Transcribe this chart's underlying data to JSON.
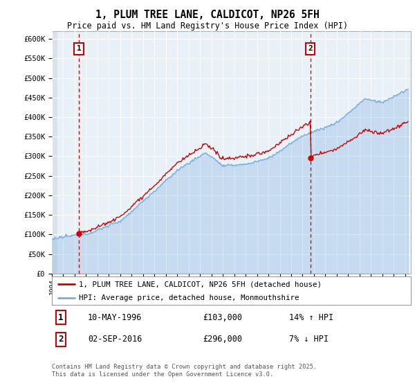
{
  "title": "1, PLUM TREE LANE, CALDICOT, NP26 5FH",
  "subtitle": "Price paid vs. HM Land Registry's House Price Index (HPI)",
  "ylim": [
    0,
    620000
  ],
  "yticks": [
    0,
    50000,
    100000,
    150000,
    200000,
    250000,
    300000,
    350000,
    400000,
    450000,
    500000,
    550000,
    600000
  ],
  "ytick_labels": [
    "£0",
    "£50K",
    "£100K",
    "£150K",
    "£200K",
    "£250K",
    "£300K",
    "£350K",
    "£400K",
    "£450K",
    "£500K",
    "£550K",
    "£600K"
  ],
  "xlim_start": 1994.0,
  "xlim_end": 2025.5,
  "purchase1_date": 1996.36,
  "purchase1_price": 103000,
  "purchase2_date": 2016.67,
  "purchase2_price": 296000,
  "property_color": "#cc0000",
  "hpi_color": "#7aaddb",
  "hpi_fill_color": "#ddeeff",
  "property_label": "1, PLUM TREE LANE, CALDICOT, NP26 5FH (detached house)",
  "hpi_label": "HPI: Average price, detached house, Monmouthshire",
  "annotation1_date": "10-MAY-1996",
  "annotation1_price": "£103,000",
  "annotation1_hpi": "14% ↑ HPI",
  "annotation2_date": "02-SEP-2016",
  "annotation2_price": "£296,000",
  "annotation2_hpi": "7% ↓ HPI",
  "footer": "Contains HM Land Registry data © Crown copyright and database right 2025.\nThis data is licensed under the Open Government Licence v3.0.",
  "background_color": "#ffffff",
  "chart_bg_color": "#e8f0f8",
  "grid_color": "#ffffff"
}
